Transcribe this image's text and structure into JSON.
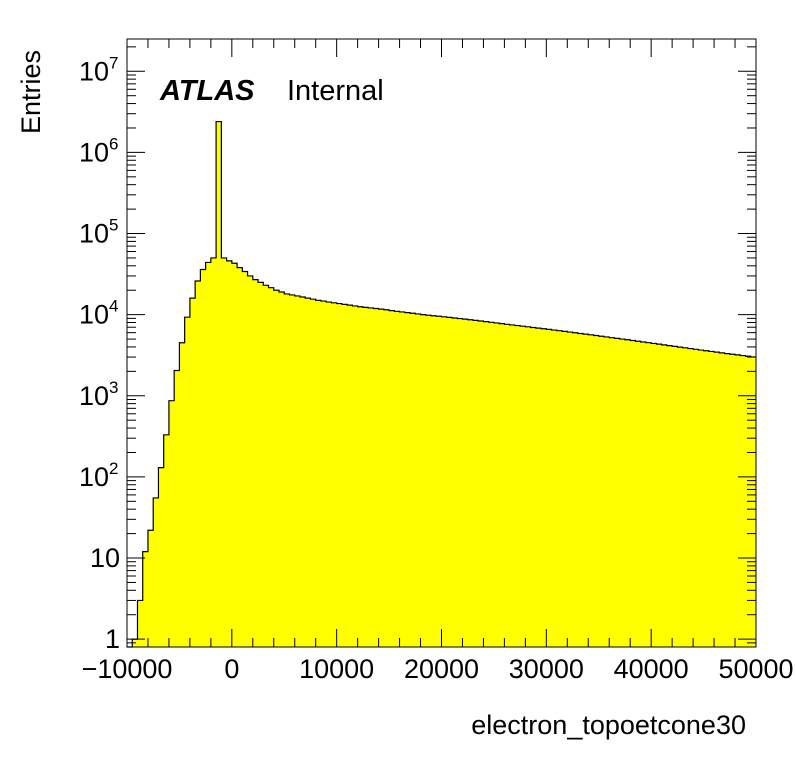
{
  "chart_data": {
    "type": "bar",
    "title": "",
    "xlabel": "electron_topoetcone30",
    "ylabel": "Entries",
    "label": {
      "experiment": "ATLAS",
      "status": "Internal"
    },
    "xlim": [
      -10000,
      50000
    ],
    "ylim": [
      0.8,
      25000000
    ],
    "log_y": true,
    "fill_color": "#ffff00",
    "line_color": "#000000",
    "x_ticks": [
      {
        "value": -10000,
        "label": "−10000"
      },
      {
        "value": 0,
        "label": "0"
      },
      {
        "value": 10000,
        "label": "10000"
      },
      {
        "value": 20000,
        "label": "20000"
      },
      {
        "value": 30000,
        "label": "30000"
      },
      {
        "value": 40000,
        "label": "40000"
      },
      {
        "value": 50000,
        "label": "50000"
      }
    ],
    "y_ticks": [
      {
        "value": 1,
        "base": "1",
        "exp": ""
      },
      {
        "value": 10,
        "base": "10",
        "exp": ""
      },
      {
        "value": 100,
        "base": "10",
        "exp": "2"
      },
      {
        "value": 1000,
        "base": "10",
        "exp": "3"
      },
      {
        "value": 10000,
        "base": "10",
        "exp": "4"
      },
      {
        "value": 100000,
        "base": "10",
        "exp": "5"
      },
      {
        "value": 1000000,
        "base": "10",
        "exp": "6"
      },
      {
        "value": 10000000,
        "base": "10",
        "exp": "7"
      }
    ],
    "bin_width": 500,
    "bin_edges_start": -10000,
    "values": [
      0,
      1,
      3,
      12,
      22,
      55,
      130,
      330,
      870,
      2050,
      4500,
      9300,
      16000,
      26000,
      36000,
      44000,
      50000,
      2400000,
      50000,
      46000,
      43000,
      38000,
      34000,
      30000,
      27000,
      25000,
      23000,
      21500,
      20000,
      19000,
      18000,
      17500,
      17000,
      16500,
      16000,
      15500,
      15000,
      14700,
      14300,
      14000,
      13700,
      13400,
      13100,
      12800,
      12500,
      12300,
      12100,
      11900,
      11700,
      11500,
      11200,
      11000,
      10800,
      10600,
      10400,
      10200,
      10000,
      9850,
      9700,
      9550,
      9400,
      9250,
      9100,
      8950,
      8800,
      8650,
      8500,
      8350,
      8200,
      8050,
      7900,
      7750,
      7600,
      7470,
      7340,
      7210,
      7080,
      6950,
      6820,
      6700,
      6580,
      6460,
      6340,
      6220,
      6100,
      5980,
      5860,
      5750,
      5640,
      5530,
      5420,
      5310,
      5200,
      5100,
      5000,
      4900,
      4800,
      4700,
      4600,
      4510,
      4420,
      4330,
      4240,
      4150,
      4060,
      3980,
      3900,
      3820,
      3740,
      3660,
      3590,
      3520,
      3450,
      3380,
      3310,
      3250,
      3190,
      3130,
      3070,
      3010
    ]
  }
}
